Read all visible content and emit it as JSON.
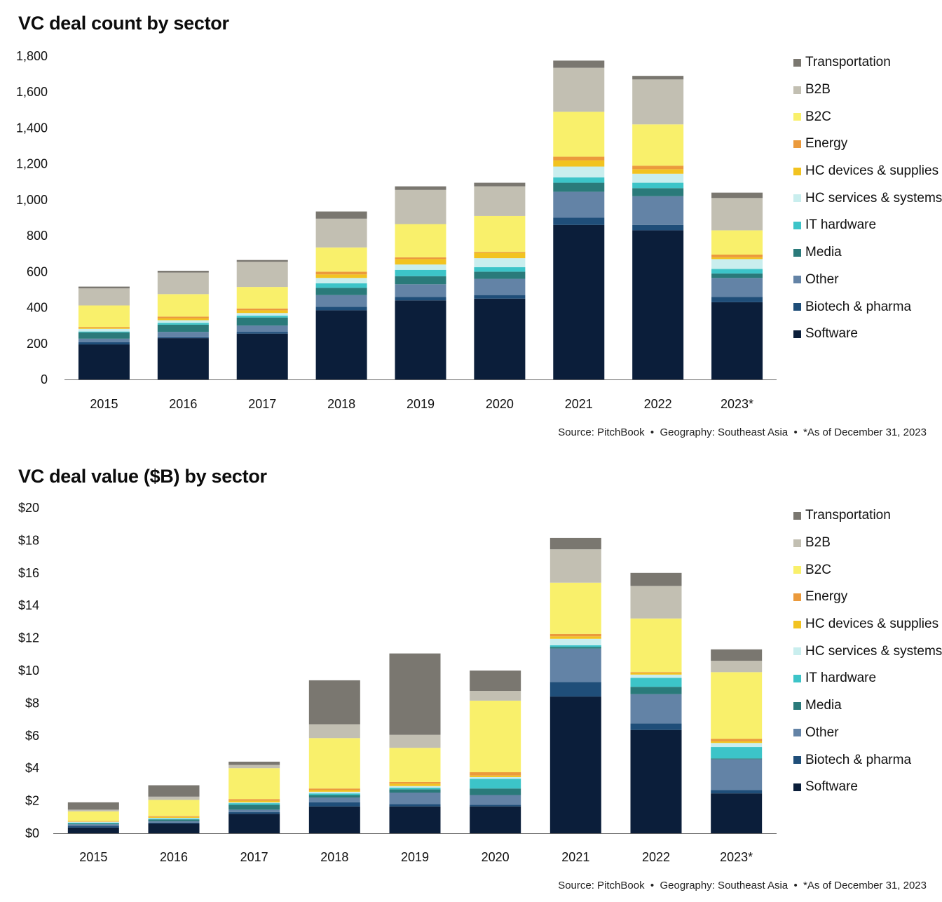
{
  "chart_data": [
    {
      "type": "bar",
      "stacked": true,
      "title": "VC deal count by sector",
      "xlabel": "",
      "ylabel": "",
      "ylim": [
        0,
        1800
      ],
      "yticks": [
        "0",
        "200",
        "400",
        "600",
        "800",
        "1,000",
        "1,200",
        "1,400",
        "1,600",
        "1,800"
      ],
      "ytick_values": [
        0,
        200,
        400,
        600,
        800,
        1000,
        1200,
        1400,
        1600,
        1800
      ],
      "categories": [
        "2015",
        "2016",
        "2017",
        "2018",
        "2019",
        "2020",
        "2021",
        "2022",
        "2023*"
      ],
      "legend_position": "right",
      "series": [
        {
          "name": "Software",
          "color": "#0b1e3a",
          "values": [
            195,
            230,
            255,
            385,
            440,
            450,
            860,
            830,
            430
          ]
        },
        {
          "name": "Biotech & pharma",
          "color": "#1f4e79",
          "values": [
            12,
            5,
            10,
            20,
            20,
            20,
            40,
            30,
            30
          ]
        },
        {
          "name": "Other",
          "color": "#6383a6",
          "values": [
            20,
            30,
            35,
            65,
            70,
            90,
            145,
            160,
            105
          ]
        },
        {
          "name": "Media",
          "color": "#2a7a7a",
          "values": [
            35,
            40,
            45,
            40,
            45,
            40,
            50,
            45,
            25
          ]
        },
        {
          "name": "IT hardware",
          "color": "#3cc4c8",
          "values": [
            5,
            10,
            10,
            25,
            35,
            25,
            30,
            30,
            25
          ]
        },
        {
          "name": "HC services & systems",
          "color": "#c9eeee",
          "values": [
            15,
            15,
            15,
            30,
            30,
            50,
            60,
            50,
            55
          ]
        },
        {
          "name": "HC devices & supplies",
          "color": "#f2c320",
          "values": [
            5,
            10,
            15,
            20,
            30,
            30,
            35,
            25,
            10
          ]
        },
        {
          "name": "Energy",
          "color": "#eb9a3c",
          "values": [
            5,
            10,
            10,
            15,
            10,
            5,
            20,
            20,
            15
          ]
        },
        {
          "name": "B2C",
          "color": "#f9f06b",
          "values": [
            120,
            125,
            120,
            135,
            185,
            200,
            250,
            230,
            135
          ]
        },
        {
          "name": "B2B",
          "color": "#c2bfb2",
          "values": [
            95,
            120,
            140,
            160,
            190,
            165,
            245,
            250,
            180
          ]
        },
        {
          "name": "Transportation",
          "color": "#7a7770",
          "values": [
            10,
            10,
            10,
            40,
            20,
            20,
            40,
            20,
            30
          ]
        }
      ],
      "source": "Source: PitchBook  •  Geography: Southeast Asia  •  *As of December 31, 2023"
    },
    {
      "type": "bar",
      "stacked": true,
      "title": "VC deal value ($B) by sector",
      "xlabel": "",
      "ylabel": "",
      "ylim": [
        0,
        20
      ],
      "yticks": [
        "$0",
        "$2",
        "$4",
        "$6",
        "$8",
        "$10",
        "$12",
        "$14",
        "$16",
        "$18",
        "$20"
      ],
      "ytick_values": [
        0,
        2,
        4,
        6,
        8,
        10,
        12,
        14,
        16,
        18,
        20
      ],
      "categories": [
        "2015",
        "2016",
        "2017",
        "2018",
        "2019",
        "2020",
        "2021",
        "2022",
        "2023*"
      ],
      "legend_position": "right",
      "series": [
        {
          "name": "Software",
          "color": "#0b1e3a",
          "values": [
            0.35,
            0.6,
            1.2,
            1.65,
            1.65,
            1.65,
            8.4,
            6.35,
            2.45
          ]
        },
        {
          "name": "Biotech & pharma",
          "color": "#1f4e79",
          "values": [
            0.1,
            0.05,
            0.1,
            0.25,
            0.15,
            0.1,
            0.9,
            0.4,
            0.2
          ]
        },
        {
          "name": "Other",
          "color": "#6383a6",
          "values": [
            0.1,
            0.1,
            0.15,
            0.3,
            0.7,
            0.6,
            2.05,
            1.8,
            1.9
          ]
        },
        {
          "name": "Media",
          "color": "#2a7a7a",
          "values": [
            0.05,
            0.1,
            0.3,
            0.15,
            0.2,
            0.4,
            0.1,
            0.45,
            0.05
          ]
        },
        {
          "name": "IT hardware",
          "color": "#3cc4c8",
          "values": [
            0.05,
            0.05,
            0.1,
            0.1,
            0.1,
            0.6,
            0.1,
            0.55,
            0.7
          ]
        },
        {
          "name": "HC services & systems",
          "color": "#c9eeee",
          "values": [
            0.05,
            0.05,
            0.05,
            0.1,
            0.1,
            0.1,
            0.4,
            0.2,
            0.25
          ]
        },
        {
          "name": "HC devices & supplies",
          "color": "#f2c320",
          "values": [
            0.02,
            0.05,
            0.1,
            0.1,
            0.15,
            0.1,
            0.15,
            0.1,
            0.1
          ]
        },
        {
          "name": "Energy",
          "color": "#eb9a3c",
          "values": [
            0.03,
            0.05,
            0.1,
            0.1,
            0.1,
            0.2,
            0.15,
            0.05,
            0.15
          ]
        },
        {
          "name": "B2C",
          "color": "#f9f06b",
          "values": [
            0.6,
            1.0,
            1.9,
            3.1,
            2.1,
            4.4,
            3.15,
            3.3,
            4.1
          ]
        },
        {
          "name": "B2B",
          "color": "#c2bfb2",
          "values": [
            0.1,
            0.2,
            0.2,
            0.85,
            0.8,
            0.6,
            2.05,
            2.0,
            0.7
          ]
        },
        {
          "name": "Transportation",
          "color": "#7a7770",
          "values": [
            0.45,
            0.7,
            0.2,
            2.7,
            5.0,
            1.25,
            0.7,
            0.8,
            0.7
          ]
        }
      ],
      "source": "Source: PitchBook  •  Geography: Southeast Asia  •  *As of December 31, 2023"
    }
  ]
}
